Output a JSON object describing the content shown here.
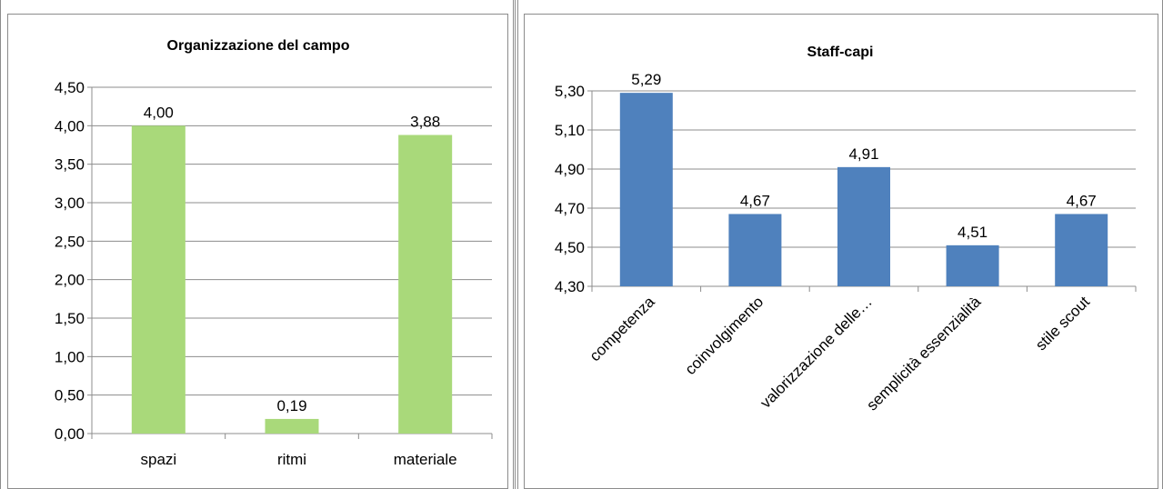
{
  "chart_data": [
    {
      "type": "bar",
      "title": "Organizzazione del campo",
      "categories": [
        "spazi",
        "ritmi",
        "materiale"
      ],
      "values": [
        4.0,
        0.19,
        3.88
      ],
      "value_labels": [
        "4,00",
        "0,19",
        "3,88"
      ],
      "ylim": [
        0,
        4.5
      ],
      "yticks": [
        "0,00",
        "0,50",
        "1,00",
        "1,50",
        "2,00",
        "2,50",
        "3,00",
        "3,50",
        "4,00",
        "4,50"
      ],
      "grid": true,
      "legend": "none",
      "bar_color": "#a9d97a"
    },
    {
      "type": "bar",
      "title": "Staff-capi",
      "categories": [
        "competenza",
        "coinvolgimento",
        "valorizzazione delle…",
        "semplicità essenzialità",
        "stile scout"
      ],
      "values": [
        5.29,
        4.67,
        4.91,
        4.51,
        4.67
      ],
      "value_labels": [
        "5,29",
        "4,67",
        "4,91",
        "4,51",
        "4,67"
      ],
      "ylim": [
        4.3,
        5.3
      ],
      "yticks": [
        "4,30",
        "4,50",
        "4,70",
        "4,90",
        "5,10",
        "5,30"
      ],
      "grid": true,
      "legend": "none",
      "bar_color": "#4f81bd"
    }
  ]
}
